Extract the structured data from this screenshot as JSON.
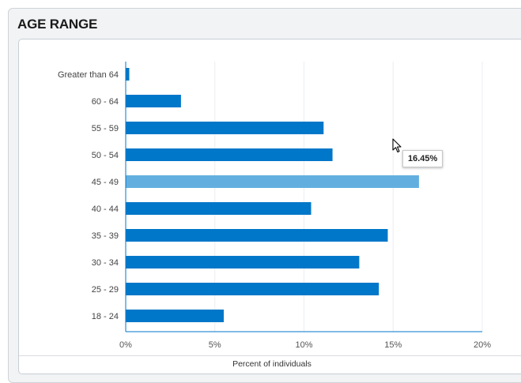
{
  "panel": {
    "title": "AGE RANGE"
  },
  "tooltip": {
    "text": "16.45%"
  },
  "chart_data": {
    "type": "bar",
    "orientation": "horizontal",
    "categories": [
      "Greater than 64",
      "60 - 64",
      "55 - 59",
      "50 - 54",
      "45 - 49",
      "40 - 44",
      "35 - 39",
      "30 - 34",
      "25 - 29",
      "18 - 24"
    ],
    "values": [
      0.2,
      3.1,
      11.1,
      11.6,
      16.45,
      10.4,
      14.7,
      13.1,
      14.2,
      5.5
    ],
    "highlighted_index": 4,
    "xlabel": "Percent of individuals",
    "xlim": [
      0,
      20
    ],
    "xticks": [
      0,
      5,
      10,
      15,
      20
    ],
    "xtick_labels": [
      "0%",
      "5%",
      "10%",
      "15%",
      "20%"
    ],
    "grid": true,
    "bar_color": "#0077c8",
    "highlight_color": "#62afdf"
  }
}
